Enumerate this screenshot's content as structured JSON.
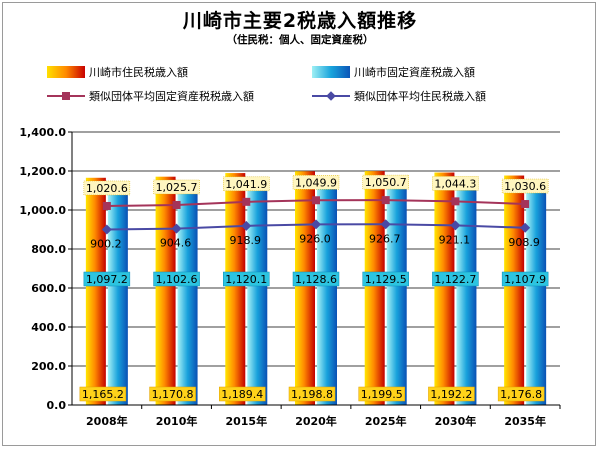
{
  "title": "川崎市主要2税歳入額推移",
  "subtitle": "（住民税：個人、固定資産税）",
  "colors": {
    "resident": "#e42010",
    "property": "#19a4dc",
    "avg_property_line": "#a4345a",
    "avg_resident_line": "#4a4aa4"
  },
  "chart_data": {
    "type": "bar",
    "title": "川崎市主要2税歳入額推移",
    "subtitle": "（住民税：個人、固定資産税）",
    "categories": [
      "2008年",
      "2010年",
      "2015年",
      "2020年",
      "2025年",
      "2030年",
      "2035年"
    ],
    "ylim": [
      0,
      1400
    ],
    "yticks": [
      "0.0",
      "200.0",
      "400.0",
      "600.0",
      "800.0",
      "1,000.0",
      "1,200.0",
      "1,400.0"
    ],
    "grid": true,
    "legend_position": "top",
    "series": [
      {
        "name": "川崎市住民税歳入額",
        "type": "bar",
        "values": [
          1165.2,
          1170.8,
          1189.4,
          1198.8,
          1199.5,
          1192.2,
          1176.8
        ],
        "labels": [
          "1,165.2",
          "1,170.8",
          "1,189.4",
          "1,198.8",
          "1,199.5",
          "1,192.2",
          "1,176.8"
        ]
      },
      {
        "name": "川崎市固定資産税歳入額",
        "type": "bar",
        "values": [
          1097.2,
          1102.6,
          1120.1,
          1128.6,
          1129.5,
          1122.7,
          1107.9
        ],
        "labels": [
          "1,097.2",
          "1,102.6",
          "1,120.1",
          "1,128.6",
          "1,129.5",
          "1,122.7",
          "1,107.9"
        ]
      },
      {
        "name": "類似団体平均固定資産税税歳入額",
        "type": "line",
        "marker": "square",
        "values": [
          1020.6,
          1025.7,
          1041.9,
          1049.9,
          1050.7,
          1044.3,
          1030.6
        ],
        "labels": [
          "1,020.6",
          "1,025.7",
          "1,041.9",
          "1,049.9",
          "1,050.7",
          "1,044.3",
          "1,030.6"
        ]
      },
      {
        "name": "類似団体平均住民税歳入額",
        "type": "line",
        "marker": "diamond",
        "values": [
          900.2,
          904.6,
          918.9,
          926.0,
          926.7,
          921.1,
          908.9
        ],
        "labels": [
          "900.2",
          "904.6",
          "918.9",
          "926.0",
          "926.7",
          "921.1",
          "908.9"
        ]
      }
    ]
  }
}
